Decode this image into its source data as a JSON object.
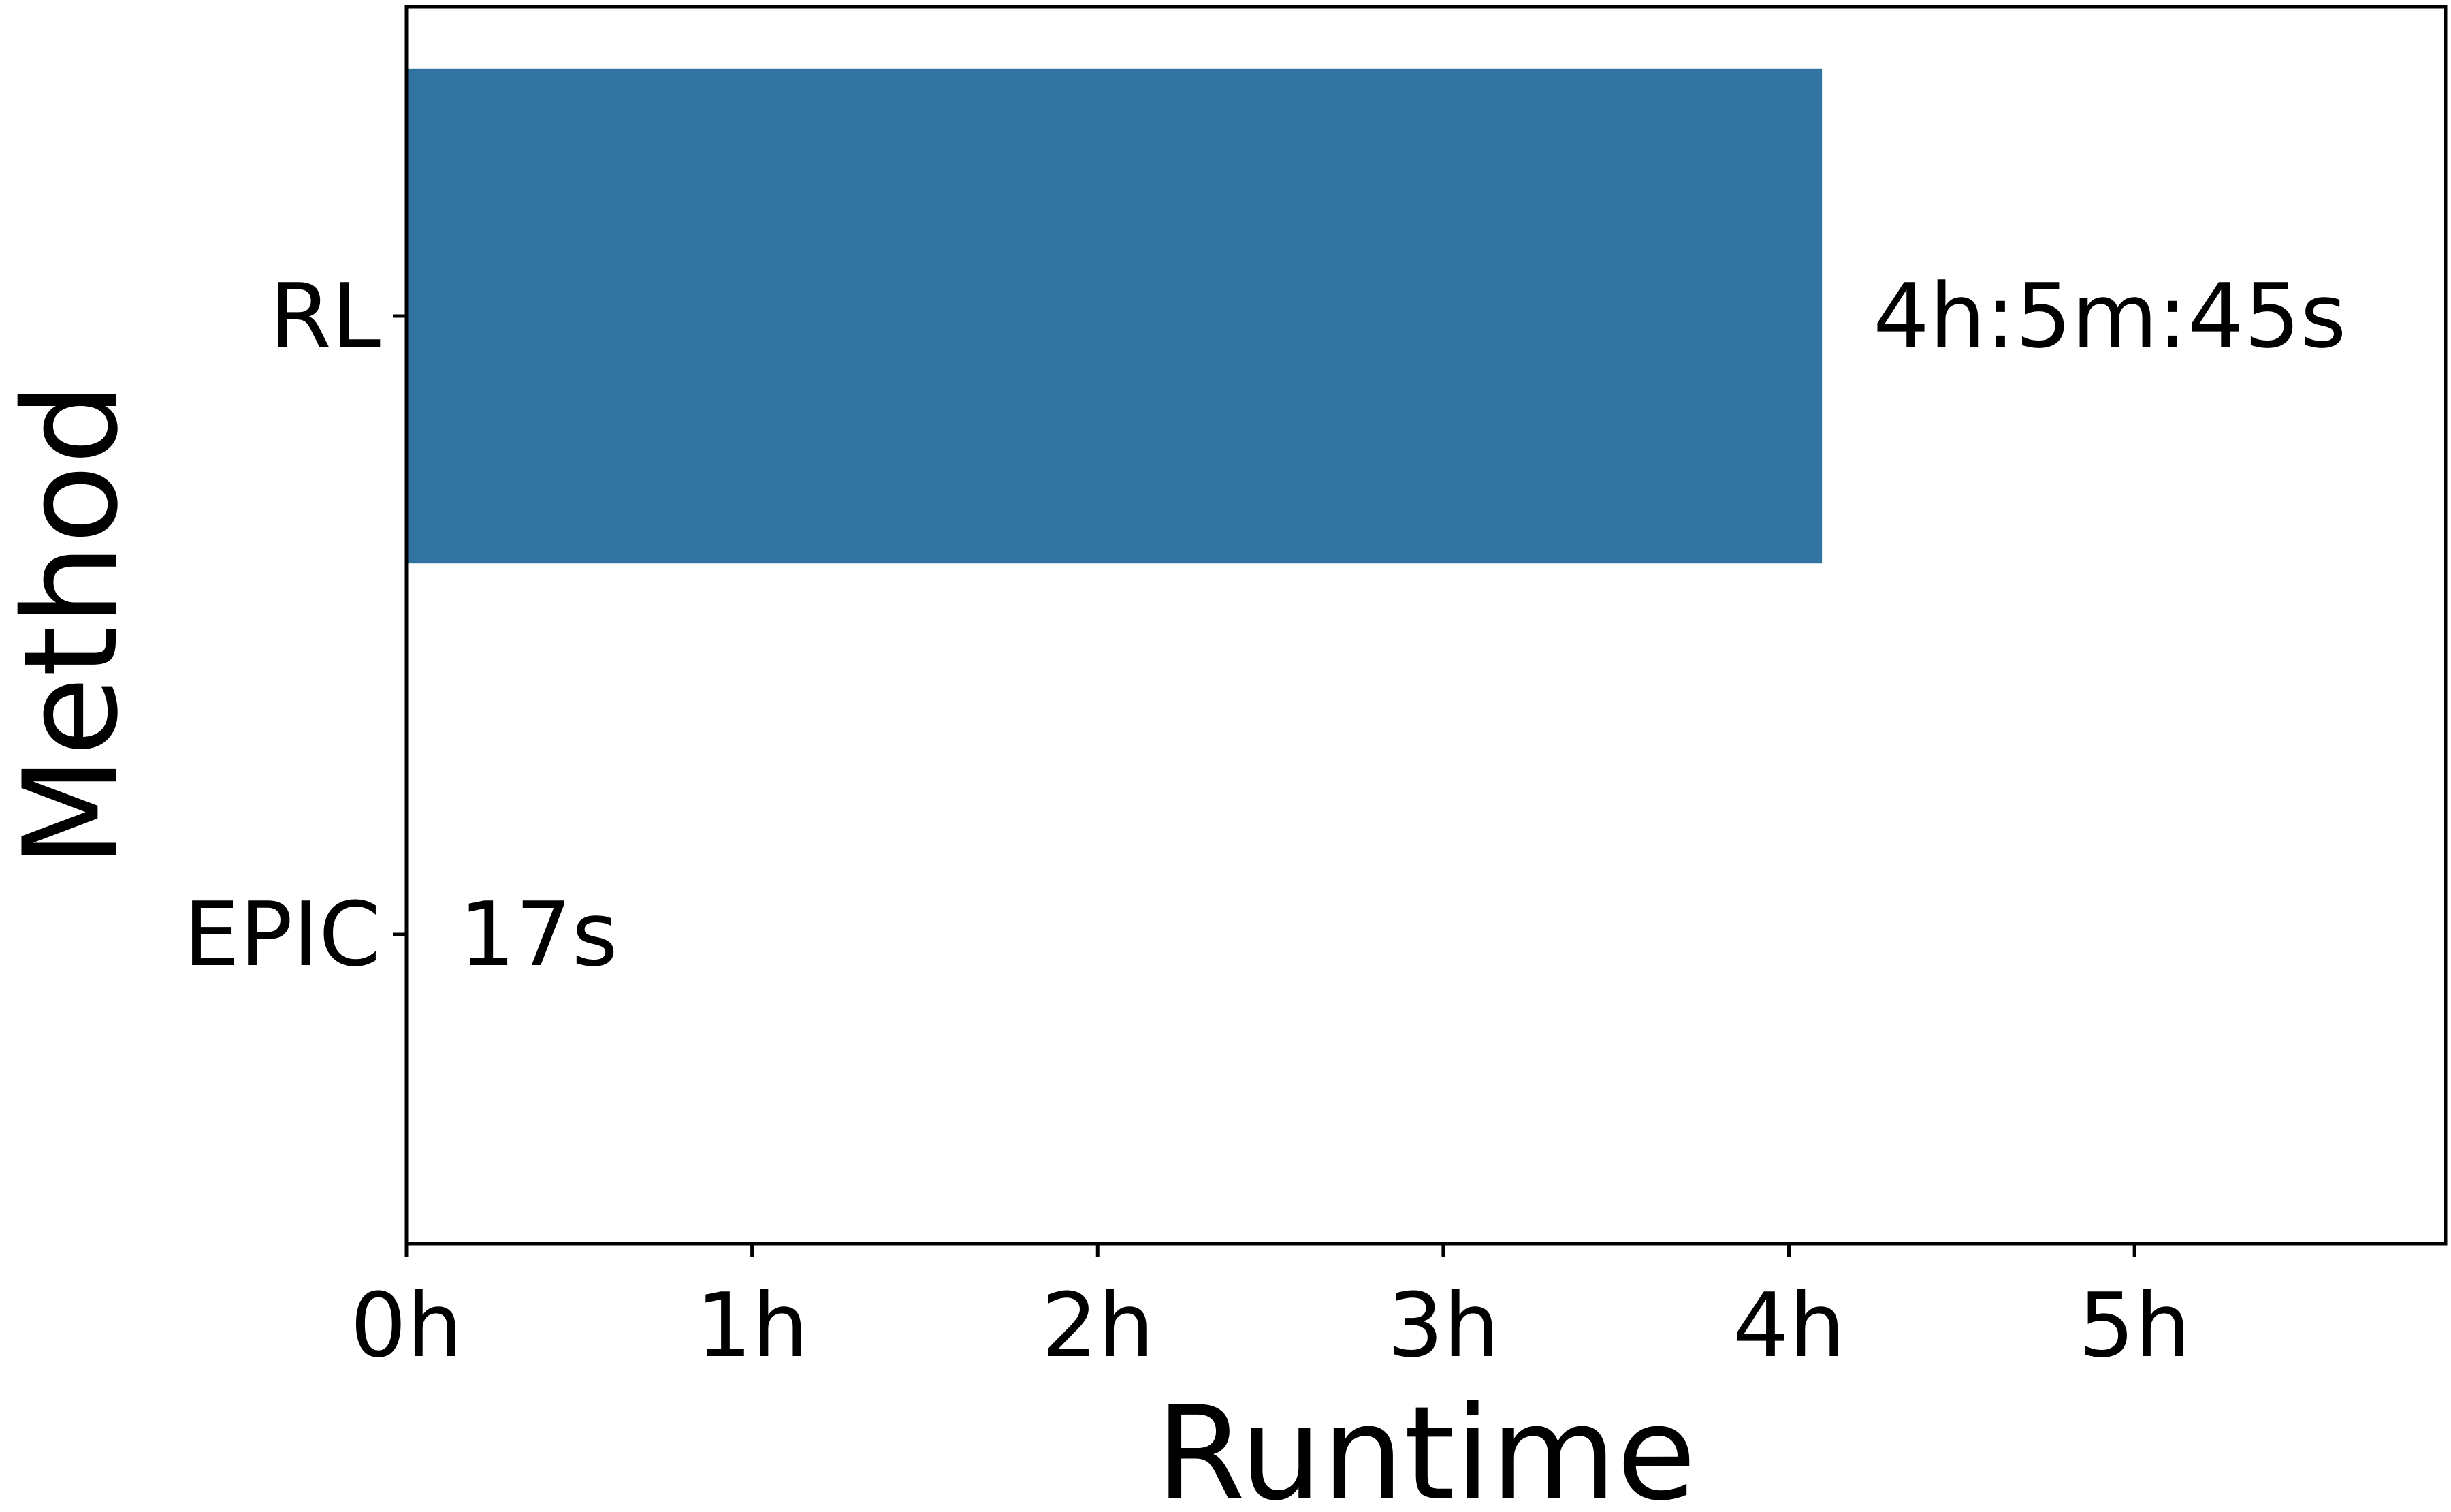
{
  "chart_data": {
    "type": "bar",
    "orientation": "horizontal",
    "categories": [
      "RL",
      "EPIC"
    ],
    "values": [
      4.0958,
      0.0047
    ],
    "value_unit": "hours",
    "data_labels": [
      "4h:5m:45s",
      "17s"
    ],
    "xlabel": "Runtime",
    "ylabel": "Method",
    "xlim": [
      0,
      5.9
    ],
    "xticks": [
      0,
      1,
      2,
      3,
      4,
      5
    ],
    "xtick_labels": [
      "0h",
      "1h",
      "2h",
      "3h",
      "4h",
      "5h"
    ],
    "grid": false,
    "legend": "none",
    "colors": {
      "bar": "#3274a1",
      "axis": "#000000",
      "text": "#000000"
    }
  }
}
